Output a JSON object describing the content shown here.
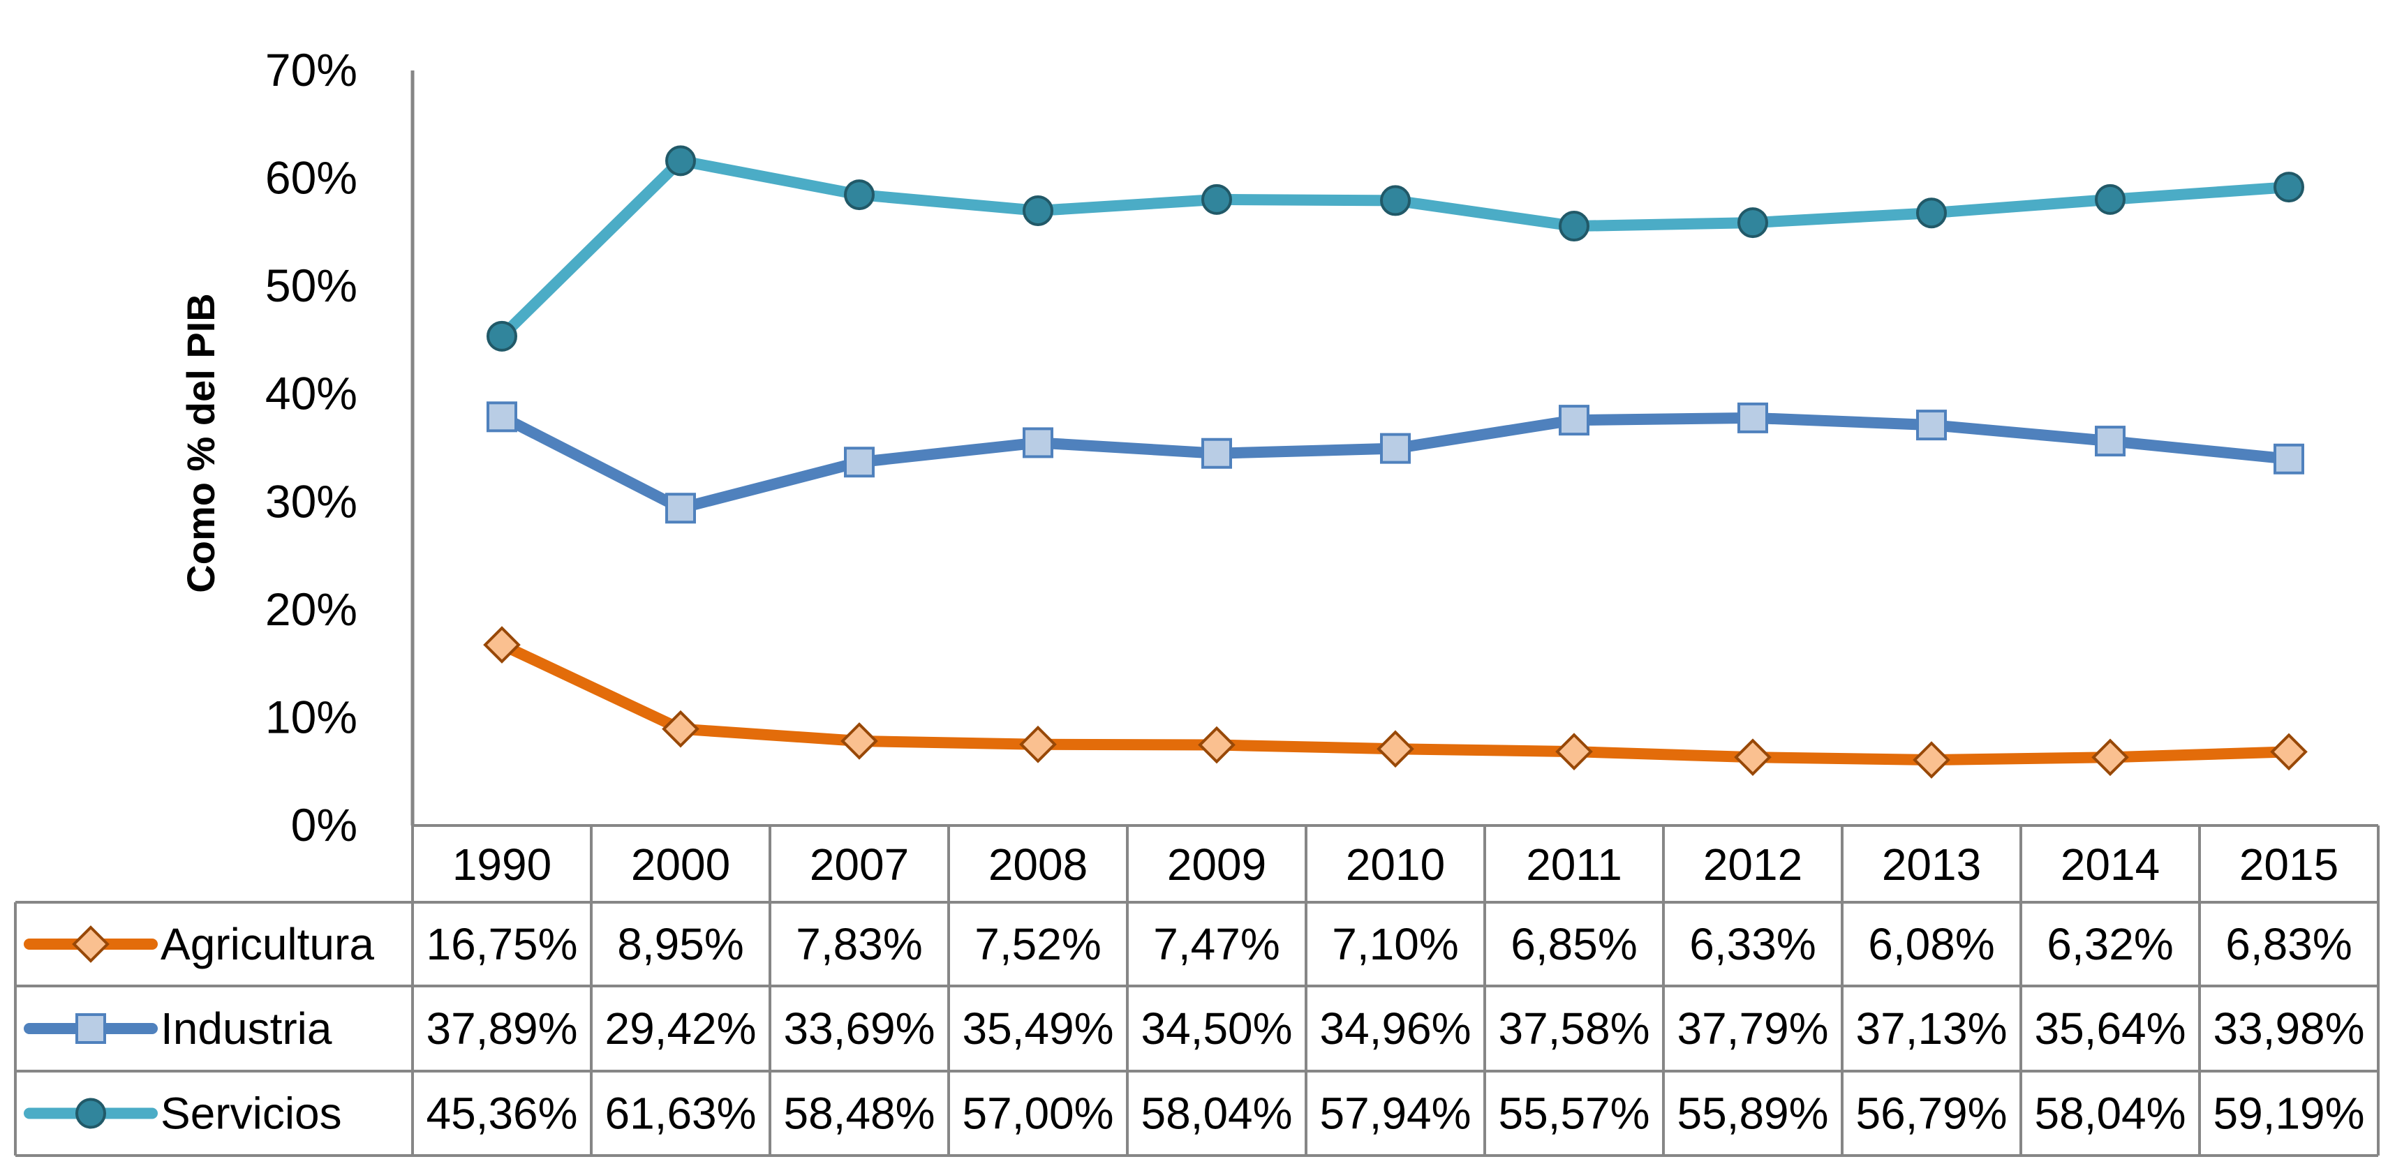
{
  "chart_data": {
    "type": "line",
    "title": "",
    "ylabel": "Como % del PIB",
    "xlabel": "",
    "ylim": [
      0,
      70
    ],
    "yticks": [
      0,
      10,
      20,
      30,
      40,
      50,
      60,
      70
    ],
    "ytick_labels": [
      "0%",
      "10%",
      "20%",
      "30%",
      "40%",
      "50%",
      "60%",
      "70%"
    ],
    "categories": [
      "1990",
      "2000",
      "2007",
      "2008",
      "2009",
      "2010",
      "2011",
      "2012",
      "2013",
      "2014",
      "2015"
    ],
    "legend_position": "data-table",
    "grid": false,
    "series": [
      {
        "name": "Agricultura",
        "color": "#E36C0A",
        "marker": "diamond",
        "marker_fill": "#FAC090",
        "marker_stroke": "#984807",
        "values": [
          16.75,
          8.95,
          7.83,
          7.52,
          7.47,
          7.1,
          6.85,
          6.33,
          6.08,
          6.32,
          6.83
        ],
        "labels": [
          "16,75%",
          "8,95%",
          "7,83%",
          "7,52%",
          "7,47%",
          "7,10%",
          "6,85%",
          "6,33%",
          "6,08%",
          "6,32%",
          "6,83%"
        ]
      },
      {
        "name": "Industria",
        "color": "#4F81BD",
        "marker": "square",
        "marker_fill": "#B9CDE5",
        "marker_stroke": "#4F81BD",
        "values": [
          37.89,
          29.42,
          33.69,
          35.49,
          34.5,
          34.96,
          37.58,
          37.79,
          37.13,
          35.64,
          33.98
        ],
        "labels": [
          "37,89%",
          "29,42%",
          "33,69%",
          "35,49%",
          "34,50%",
          "34,96%",
          "37,58%",
          "37,79%",
          "37,13%",
          "35,64%",
          "33,98%"
        ]
      },
      {
        "name": "Servicios",
        "color": "#4BACC6",
        "marker": "circle",
        "marker_fill": "#31859C",
        "marker_stroke": "#215968",
        "values": [
          45.36,
          61.63,
          58.48,
          57.0,
          58.04,
          57.94,
          55.57,
          55.89,
          56.79,
          58.04,
          59.19
        ],
        "labels": [
          "45,36%",
          "61,63%",
          "58,48%",
          "57,00%",
          "58,04%",
          "57,94%",
          "55,57%",
          "55,89%",
          "56,79%",
          "58,04%",
          "59,19%"
        ]
      }
    ]
  },
  "colors": {
    "axis": "#868686",
    "background": "#FFFFFF"
  }
}
